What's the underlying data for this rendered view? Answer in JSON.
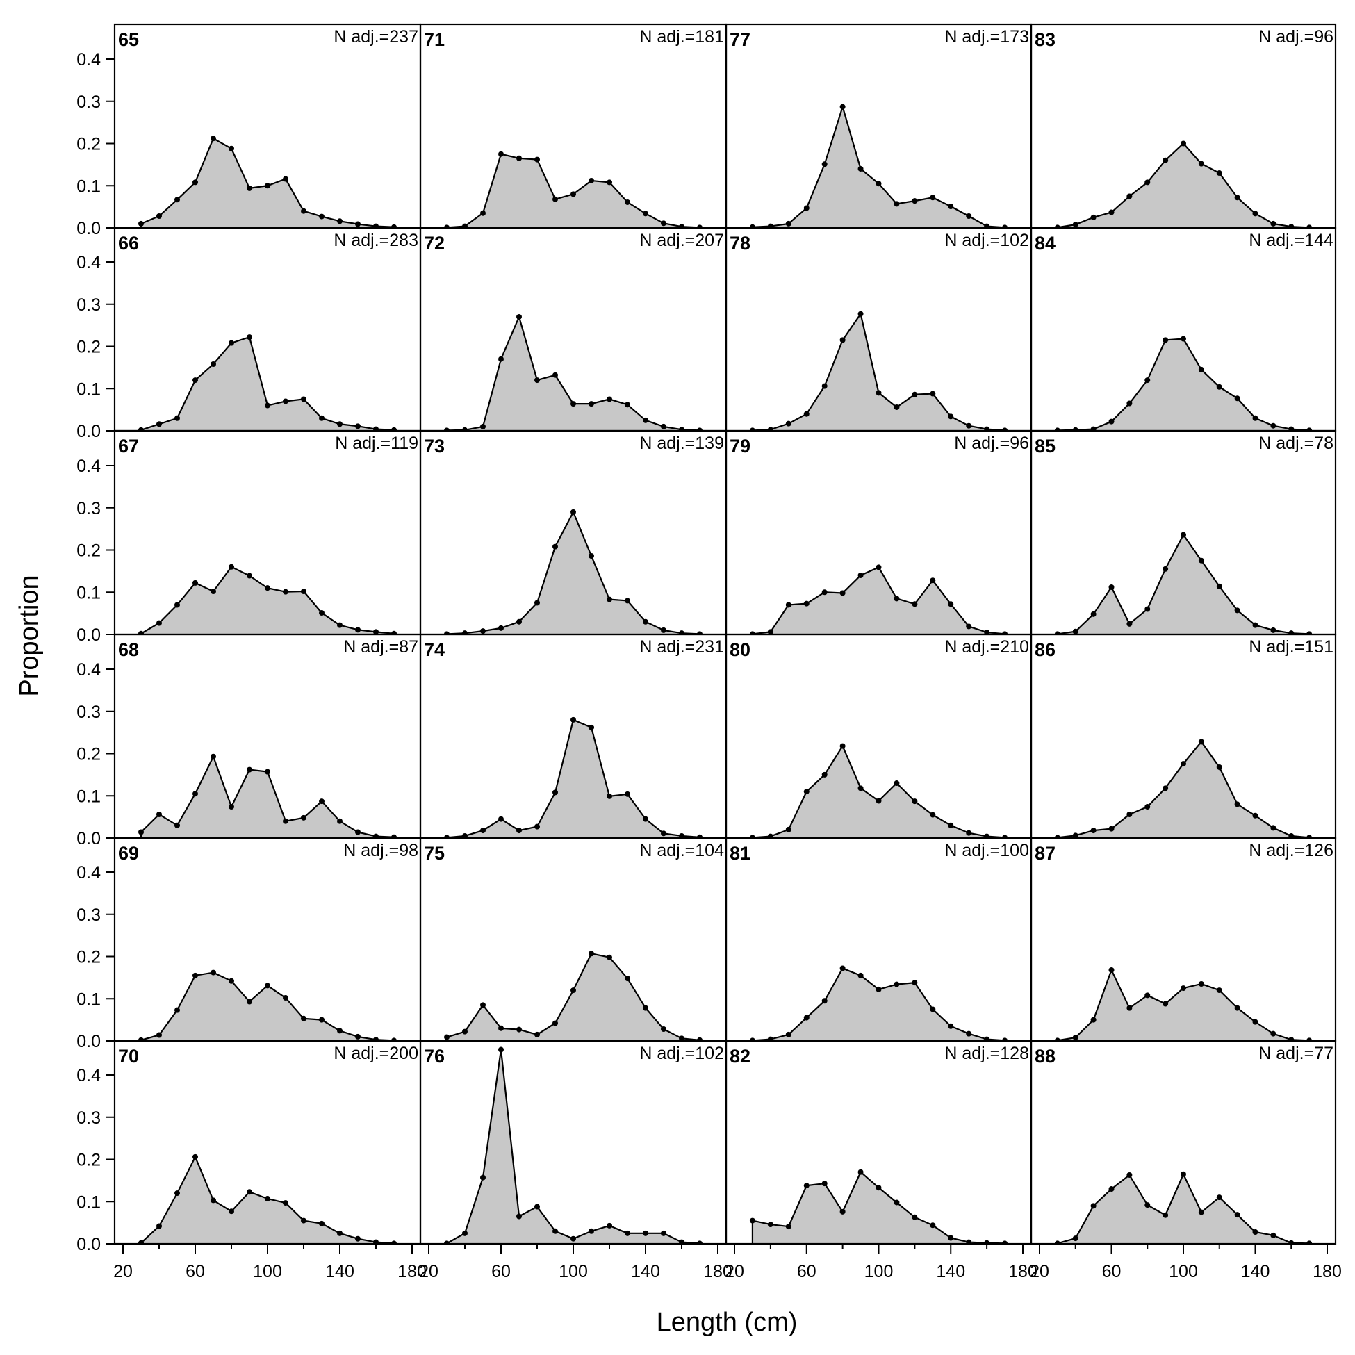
{
  "chart_data": {
    "type": "area",
    "xlabel": "Length (cm)",
    "ylabel": "Proportion",
    "xlim": [
      20,
      180
    ],
    "ylim": [
      0,
      0.46
    ],
    "x_ticks": [
      20,
      60,
      100,
      140,
      180
    ],
    "y_ticks": [
      0.0,
      0.1,
      0.2,
      0.3,
      0.4
    ],
    "x_tick_labels": [
      "20",
      "60",
      "100",
      "140",
      "180"
    ],
    "y_tick_labels": [
      "0.0",
      "0.1",
      "0.2",
      "0.3",
      "0.4"
    ],
    "grid": false,
    "fill_color": "#c8c8c8",
    "line_color": "#000000",
    "panels": [
      {
        "year": "65",
        "n_label": "N adj.=237",
        "x": [
          30,
          40,
          50,
          60,
          70,
          80,
          90,
          100,
          110,
          120,
          130,
          140,
          150,
          160,
          170
        ],
        "y": [
          0.01,
          0.028,
          0.067,
          0.108,
          0.212,
          0.188,
          0.094,
          0.1,
          0.116,
          0.04,
          0.027,
          0.016,
          0.009,
          0.004,
          0.002
        ]
      },
      {
        "year": "66",
        "n_label": "N adj.=283",
        "x": [
          30,
          40,
          50,
          60,
          70,
          80,
          90,
          100,
          110,
          120,
          130,
          140,
          150,
          160,
          170
        ],
        "y": [
          0.002,
          0.016,
          0.03,
          0.12,
          0.158,
          0.208,
          0.222,
          0.06,
          0.07,
          0.075,
          0.03,
          0.016,
          0.011,
          0.004,
          0.002
        ]
      },
      {
        "year": "67",
        "n_label": "N adj.=119",
        "x": [
          30,
          40,
          50,
          60,
          70,
          80,
          90,
          100,
          110,
          120,
          130,
          140,
          150,
          160,
          170
        ],
        "y": [
          0.002,
          0.027,
          0.07,
          0.122,
          0.102,
          0.16,
          0.139,
          0.11,
          0.101,
          0.102,
          0.051,
          0.022,
          0.011,
          0.006,
          0.002
        ]
      },
      {
        "year": "68",
        "n_label": "N adj.=87",
        "x": [
          30,
          40,
          50,
          60,
          70,
          80,
          90,
          100,
          110,
          120,
          130,
          140,
          150,
          160,
          170
        ],
        "y": [
          0.014,
          0.056,
          0.03,
          0.105,
          0.193,
          0.074,
          0.162,
          0.157,
          0.04,
          0.048,
          0.087,
          0.04,
          0.014,
          0.004,
          0.002
        ]
      },
      {
        "year": "69",
        "n_label": "N adj.=98",
        "x": [
          30,
          40,
          50,
          60,
          70,
          80,
          90,
          100,
          110,
          120,
          130,
          140,
          150,
          160,
          170
        ],
        "y": [
          0.002,
          0.014,
          0.073,
          0.155,
          0.162,
          0.142,
          0.093,
          0.131,
          0.102,
          0.053,
          0.05,
          0.024,
          0.01,
          0.003,
          0.001
        ]
      },
      {
        "year": "70",
        "n_label": "N adj.=200",
        "x": [
          30,
          40,
          50,
          60,
          70,
          80,
          90,
          100,
          110,
          120,
          130,
          140,
          150,
          160,
          170
        ],
        "y": [
          0.002,
          0.042,
          0.12,
          0.206,
          0.103,
          0.077,
          0.123,
          0.107,
          0.097,
          0.055,
          0.048,
          0.025,
          0.012,
          0.004,
          0.001
        ]
      },
      {
        "year": "71",
        "n_label": "N adj.=181",
        "x": [
          30,
          40,
          50,
          60,
          70,
          80,
          90,
          100,
          110,
          120,
          130,
          140,
          150,
          160,
          170
        ],
        "y": [
          0.001,
          0.004,
          0.035,
          0.175,
          0.165,
          0.162,
          0.068,
          0.08,
          0.112,
          0.108,
          0.061,
          0.034,
          0.011,
          0.003,
          0.001
        ]
      },
      {
        "year": "72",
        "n_label": "N adj.=207",
        "x": [
          30,
          40,
          50,
          60,
          70,
          80,
          90,
          100,
          110,
          120,
          130,
          140,
          150,
          160,
          170
        ],
        "y": [
          0.001,
          0.002,
          0.01,
          0.17,
          0.27,
          0.12,
          0.132,
          0.064,
          0.064,
          0.075,
          0.062,
          0.025,
          0.01,
          0.003,
          0.001
        ]
      },
      {
        "year": "73",
        "n_label": "N adj.=139",
        "x": [
          30,
          40,
          50,
          60,
          70,
          80,
          90,
          100,
          110,
          120,
          130,
          140,
          150,
          160,
          170
        ],
        "y": [
          0.001,
          0.003,
          0.008,
          0.015,
          0.03,
          0.075,
          0.208,
          0.29,
          0.186,
          0.083,
          0.08,
          0.03,
          0.01,
          0.003,
          0.001
        ]
      },
      {
        "year": "74",
        "n_label": "N adj.=231",
        "x": [
          30,
          40,
          50,
          60,
          70,
          80,
          90,
          100,
          110,
          120,
          130,
          140,
          150,
          160,
          170
        ],
        "y": [
          0.001,
          0.005,
          0.018,
          0.045,
          0.018,
          0.027,
          0.108,
          0.28,
          0.262,
          0.099,
          0.104,
          0.045,
          0.011,
          0.005,
          0.002
        ]
      },
      {
        "year": "75",
        "n_label": "N adj.=104",
        "x": [
          30,
          40,
          50,
          60,
          70,
          80,
          90,
          100,
          110,
          120,
          130,
          140,
          150,
          160,
          170
        ],
        "y": [
          0.009,
          0.022,
          0.085,
          0.03,
          0.027,
          0.015,
          0.042,
          0.12,
          0.207,
          0.198,
          0.148,
          0.078,
          0.028,
          0.006,
          0.002
        ]
      },
      {
        "year": "76",
        "n_label": "N adj.=102",
        "x": [
          30,
          40,
          50,
          60,
          70,
          80,
          90,
          100,
          110,
          120,
          130,
          140,
          150,
          160,
          170
        ],
        "y": [
          0.001,
          0.025,
          0.157,
          0.46,
          0.065,
          0.088,
          0.03,
          0.012,
          0.03,
          0.043,
          0.025,
          0.025,
          0.025,
          0.004,
          0.001
        ]
      },
      {
        "year": "77",
        "n_label": "N adj.=173",
        "x": [
          30,
          40,
          50,
          60,
          70,
          80,
          90,
          100,
          110,
          120,
          130,
          140,
          150,
          160,
          170
        ],
        "y": [
          0.002,
          0.004,
          0.01,
          0.047,
          0.151,
          0.287,
          0.14,
          0.105,
          0.057,
          0.064,
          0.072,
          0.051,
          0.028,
          0.004,
          0.001
        ]
      },
      {
        "year": "78",
        "n_label": "N adj.=102",
        "x": [
          30,
          40,
          50,
          60,
          70,
          80,
          90,
          100,
          110,
          120,
          130,
          140,
          150,
          160,
          170
        ],
        "y": [
          0.001,
          0.003,
          0.017,
          0.04,
          0.106,
          0.215,
          0.277,
          0.09,
          0.056,
          0.086,
          0.088,
          0.034,
          0.012,
          0.004,
          0.001
        ]
      },
      {
        "year": "79",
        "n_label": "N adj.=96",
        "x": [
          30,
          40,
          50,
          60,
          70,
          80,
          90,
          100,
          110,
          120,
          130,
          140,
          150,
          160,
          170
        ],
        "y": [
          0.001,
          0.006,
          0.07,
          0.073,
          0.1,
          0.098,
          0.14,
          0.159,
          0.085,
          0.072,
          0.128,
          0.072,
          0.019,
          0.005,
          0.001
        ]
      },
      {
        "year": "80",
        "n_label": "N adj.=210",
        "x": [
          30,
          40,
          50,
          60,
          70,
          80,
          90,
          100,
          110,
          120,
          130,
          140,
          150,
          160,
          170
        ],
        "y": [
          0.001,
          0.004,
          0.02,
          0.11,
          0.15,
          0.218,
          0.118,
          0.088,
          0.13,
          0.087,
          0.055,
          0.03,
          0.012,
          0.004,
          0.001
        ]
      },
      {
        "year": "81",
        "n_label": "N adj.=100",
        "x": [
          30,
          40,
          50,
          60,
          70,
          80,
          90,
          100,
          110,
          120,
          130,
          140,
          150,
          160,
          170
        ],
        "y": [
          0.001,
          0.004,
          0.015,
          0.055,
          0.095,
          0.172,
          0.155,
          0.122,
          0.134,
          0.138,
          0.075,
          0.035,
          0.017,
          0.004,
          0.001
        ]
      },
      {
        "year": "82",
        "n_label": "N adj.=128",
        "x": [
          30,
          40,
          50,
          60,
          70,
          80,
          90,
          100,
          110,
          120,
          130,
          140,
          150,
          160,
          170
        ],
        "y": [
          0.055,
          0.046,
          0.041,
          0.138,
          0.143,
          0.076,
          0.17,
          0.133,
          0.098,
          0.063,
          0.044,
          0.014,
          0.004,
          0.002,
          0.001
        ]
      },
      {
        "year": "83",
        "n_label": "N adj.=96",
        "x": [
          30,
          40,
          50,
          60,
          70,
          80,
          90,
          100,
          110,
          120,
          130,
          140,
          150,
          160,
          170
        ],
        "y": [
          0.001,
          0.008,
          0.025,
          0.037,
          0.075,
          0.108,
          0.16,
          0.2,
          0.152,
          0.13,
          0.072,
          0.034,
          0.01,
          0.003,
          0.001
        ]
      },
      {
        "year": "84",
        "n_label": "N adj.=144",
        "x": [
          30,
          40,
          50,
          60,
          70,
          80,
          90,
          100,
          110,
          120,
          130,
          140,
          150,
          160,
          170
        ],
        "y": [
          0.001,
          0.002,
          0.004,
          0.022,
          0.065,
          0.12,
          0.215,
          0.218,
          0.145,
          0.104,
          0.077,
          0.03,
          0.012,
          0.004,
          0.001
        ]
      },
      {
        "year": "85",
        "n_label": "N adj.=78",
        "x": [
          30,
          40,
          50,
          60,
          70,
          80,
          90,
          100,
          110,
          120,
          130,
          140,
          150,
          160,
          170
        ],
        "y": [
          0.001,
          0.007,
          0.048,
          0.112,
          0.025,
          0.06,
          0.155,
          0.236,
          0.175,
          0.114,
          0.057,
          0.022,
          0.01,
          0.003,
          0.001
        ]
      },
      {
        "year": "86",
        "n_label": "N adj.=151",
        "x": [
          30,
          40,
          50,
          60,
          70,
          80,
          90,
          100,
          110,
          120,
          130,
          140,
          150,
          160,
          170
        ],
        "y": [
          0.001,
          0.006,
          0.018,
          0.022,
          0.056,
          0.074,
          0.118,
          0.176,
          0.228,
          0.168,
          0.08,
          0.053,
          0.024,
          0.005,
          0.001
        ]
      },
      {
        "year": "87",
        "n_label": "N adj.=126",
        "x": [
          30,
          40,
          50,
          60,
          70,
          80,
          90,
          100,
          110,
          120,
          130,
          140,
          150,
          160,
          170
        ],
        "y": [
          0.001,
          0.008,
          0.05,
          0.168,
          0.078,
          0.108,
          0.088,
          0.125,
          0.135,
          0.12,
          0.078,
          0.045,
          0.017,
          0.003,
          0.001
        ]
      },
      {
        "year": "88",
        "n_label": "N adj.=77",
        "x": [
          30,
          40,
          50,
          60,
          70,
          80,
          90,
          100,
          110,
          120,
          130,
          140,
          150,
          160,
          170
        ],
        "y": [
          0.001,
          0.013,
          0.09,
          0.13,
          0.163,
          0.092,
          0.068,
          0.165,
          0.075,
          0.11,
          0.069,
          0.028,
          0.02,
          0.002,
          0.001
        ]
      }
    ]
  }
}
